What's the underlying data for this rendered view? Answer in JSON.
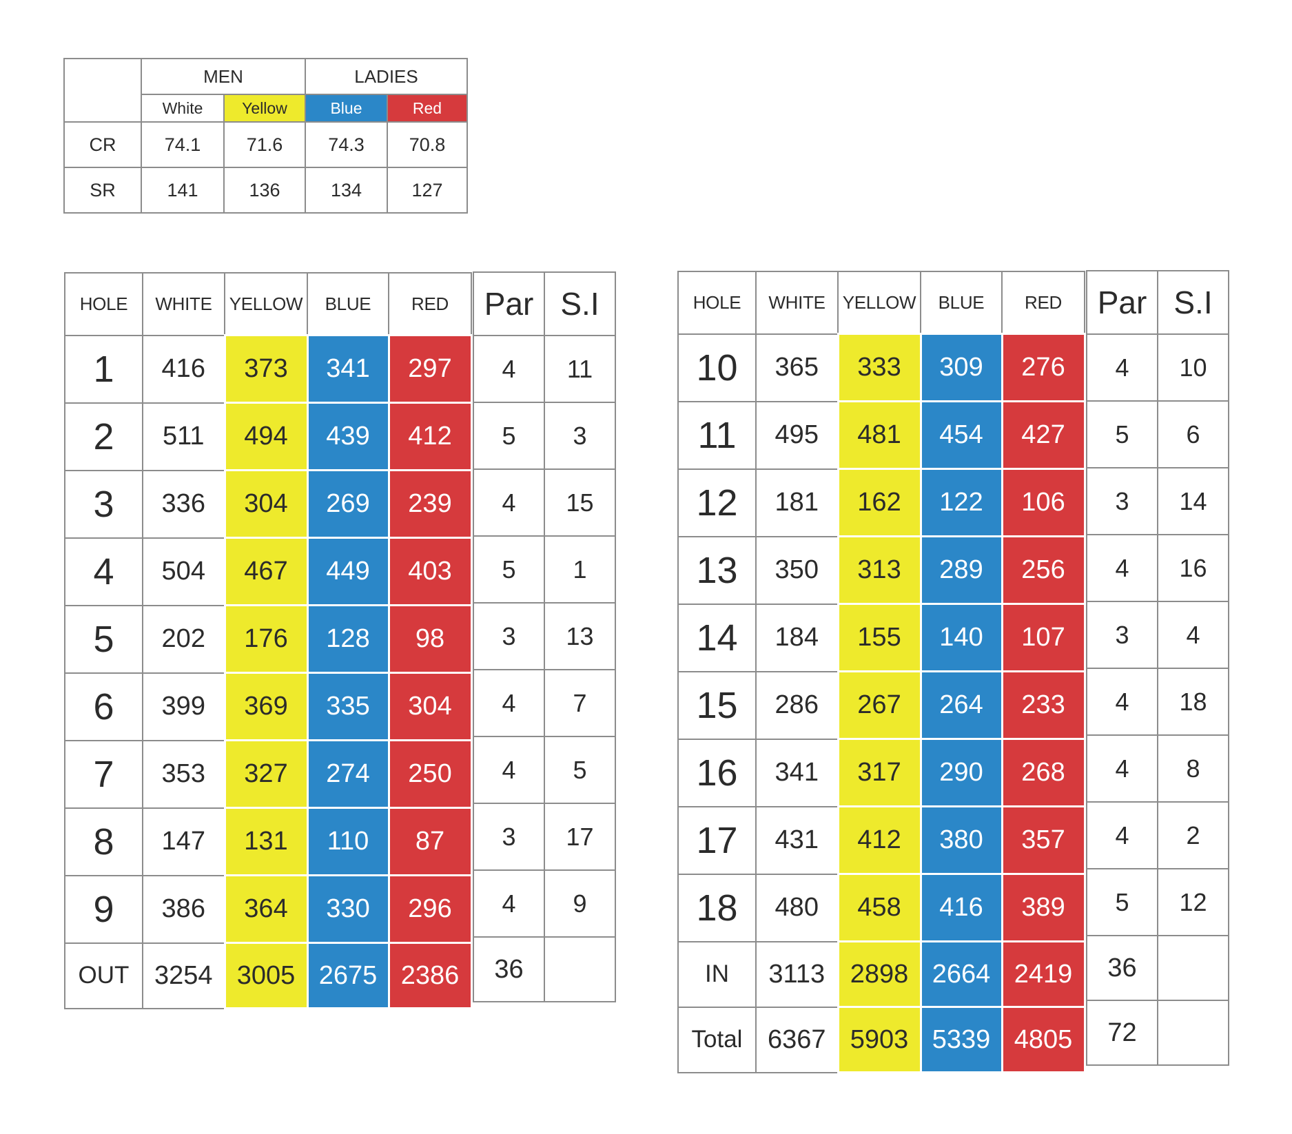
{
  "ratings": {
    "groups": [
      "MEN",
      "LADIES"
    ],
    "tees": [
      {
        "label": "White",
        "color": "#ffffff"
      },
      {
        "label": "Yellow",
        "color": "#eeea2c"
      },
      {
        "label": "Blue",
        "color": "#2b87c8"
      },
      {
        "label": "Red",
        "color": "#d63a3d"
      }
    ],
    "rows": [
      {
        "label": "CR",
        "values": [
          "74.1",
          "71.6",
          "74.3",
          "70.8"
        ]
      },
      {
        "label": "SR",
        "values": [
          "141",
          "136",
          "134",
          "127"
        ]
      }
    ]
  },
  "yardage_headers": [
    "HOLE",
    "WHITE",
    "YELLOW",
    "BLUE",
    "RED"
  ],
  "parsi_headers": [
    "Par",
    "S.I"
  ],
  "front_nine": {
    "holes": [
      {
        "hole": "1",
        "white": "416",
        "yellow": "373",
        "blue": "341",
        "red": "297",
        "par": "4",
        "si": "11"
      },
      {
        "hole": "2",
        "white": "511",
        "yellow": "494",
        "blue": "439",
        "red": "412",
        "par": "5",
        "si": "3"
      },
      {
        "hole": "3",
        "white": "336",
        "yellow": "304",
        "blue": "269",
        "red": "239",
        "par": "4",
        "si": "15"
      },
      {
        "hole": "4",
        "white": "504",
        "yellow": "467",
        "blue": "449",
        "red": "403",
        "par": "5",
        "si": "1"
      },
      {
        "hole": "5",
        "white": "202",
        "yellow": "176",
        "blue": "128",
        "red": "98",
        "par": "3",
        "si": "13"
      },
      {
        "hole": "6",
        "white": "399",
        "yellow": "369",
        "blue": "335",
        "red": "304",
        "par": "4",
        "si": "7"
      },
      {
        "hole": "7",
        "white": "353",
        "yellow": "327",
        "blue": "274",
        "red": "250",
        "par": "4",
        "si": "5"
      },
      {
        "hole": "8",
        "white": "147",
        "yellow": "131",
        "blue": "110",
        "red": "87",
        "par": "3",
        "si": "17"
      },
      {
        "hole": "9",
        "white": "386",
        "yellow": "364",
        "blue": "330",
        "red": "296",
        "par": "4",
        "si": "9"
      }
    ],
    "totals": [
      {
        "label": "OUT",
        "white": "3254",
        "yellow": "3005",
        "blue": "2675",
        "red": "2386",
        "par": "36",
        "si": ""
      }
    ]
  },
  "back_nine": {
    "holes": [
      {
        "hole": "10",
        "white": "365",
        "yellow": "333",
        "blue": "309",
        "red": "276",
        "par": "4",
        "si": "10"
      },
      {
        "hole": "11",
        "white": "495",
        "yellow": "481",
        "blue": "454",
        "red": "427",
        "par": "5",
        "si": "6"
      },
      {
        "hole": "12",
        "white": "181",
        "yellow": "162",
        "blue": "122",
        "red": "106",
        "par": "3",
        "si": "14"
      },
      {
        "hole": "13",
        "white": "350",
        "yellow": "313",
        "blue": "289",
        "red": "256",
        "par": "4",
        "si": "16"
      },
      {
        "hole": "14",
        "white": "184",
        "yellow": "155",
        "blue": "140",
        "red": "107",
        "par": "3",
        "si": "4"
      },
      {
        "hole": "15",
        "white": "286",
        "yellow": "267",
        "blue": "264",
        "red": "233",
        "par": "4",
        "si": "18"
      },
      {
        "hole": "16",
        "white": "341",
        "yellow": "317",
        "blue": "290",
        "red": "268",
        "par": "4",
        "si": "8"
      },
      {
        "hole": "17",
        "white": "431",
        "yellow": "412",
        "blue": "380",
        "red": "357",
        "par": "4",
        "si": "2"
      },
      {
        "hole": "18",
        "white": "480",
        "yellow": "458",
        "blue": "416",
        "red": "389",
        "par": "5",
        "si": "12"
      }
    ],
    "totals": [
      {
        "label": "IN",
        "white": "3113",
        "yellow": "2898",
        "blue": "2664",
        "red": "2419",
        "par": "36",
        "si": ""
      },
      {
        "label": "Total",
        "white": "6367",
        "yellow": "5903",
        "blue": "5339",
        "red": "4805",
        "par": "72",
        "si": ""
      }
    ]
  }
}
